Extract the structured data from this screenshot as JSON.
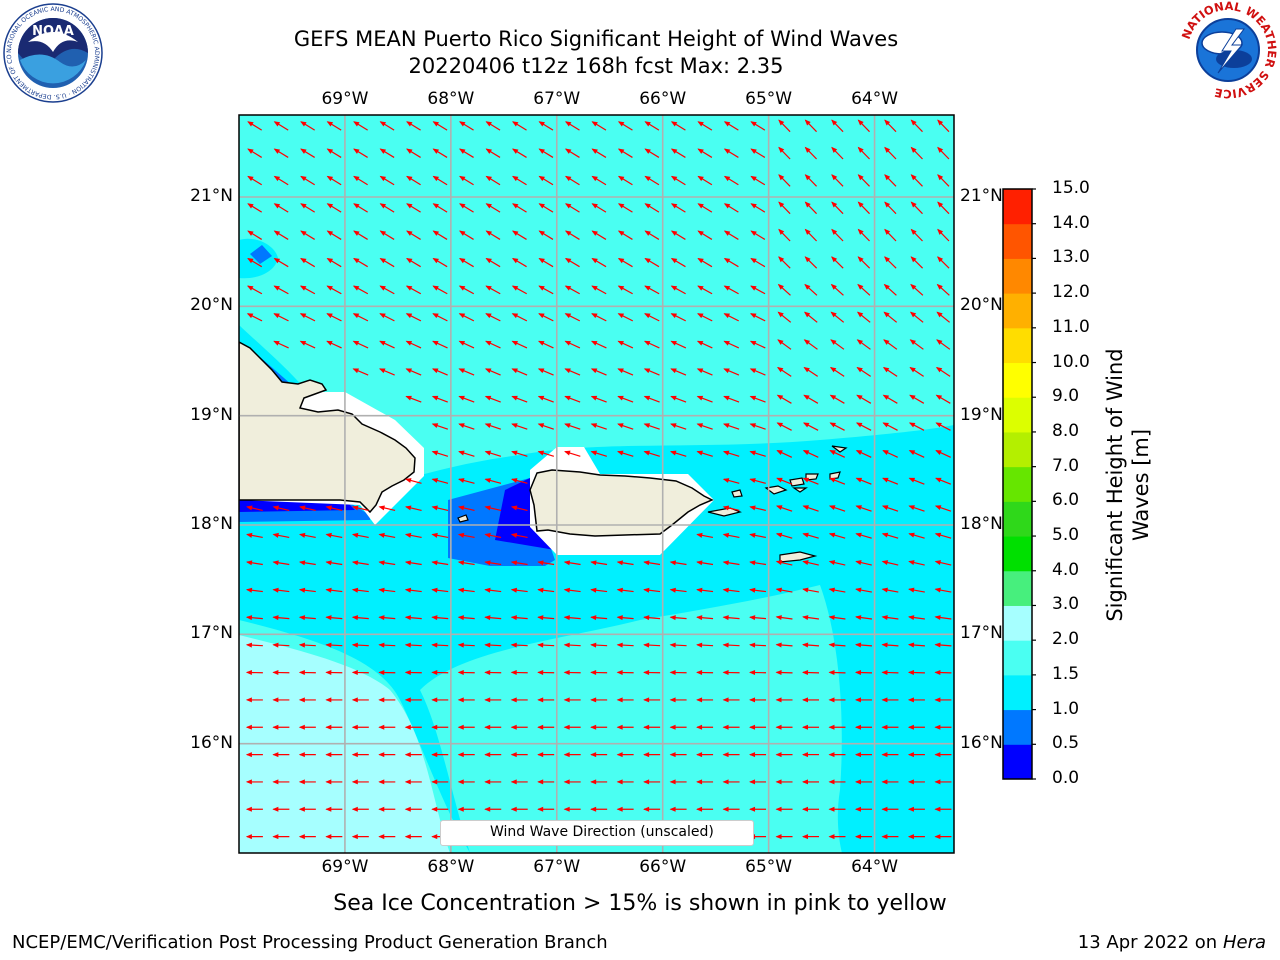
{
  "title": {
    "line1": "GEFS MEAN Puerto Rico Significant Height of Wind Waves",
    "line2": "20220406 t12z 168h fcst   Max: 2.35"
  },
  "logos": {
    "noaa_text": "NOAA",
    "noaa_ring": "NATIONAL OCEANIC AND ATMOSPHERIC ADMINISTRATION · U.S. DEPARTMENT OF COMMERCE ·",
    "nws_ring": "NATIONAL WEATHER SERVICE"
  },
  "map": {
    "lon_min": -70.0,
    "lon_max": -63.25,
    "lat_min": 15.0,
    "lat_max": 21.75,
    "lon_ticks": [
      "69°W",
      "68°W",
      "67°W",
      "66°W",
      "65°W",
      "64°W"
    ],
    "lat_ticks": [
      "21°N",
      "20°N",
      "19°N",
      "18°N",
      "17°N",
      "16°N"
    ],
    "arrow_color": "#ff0000",
    "grid_color": "#b0b0b0"
  },
  "legend": {
    "label": "Wind Wave Direction (unscaled)"
  },
  "colorbar": {
    "title_line1": "Significant Height of Wind",
    "title_line2": "Waves [m]",
    "labels": [
      "0.0",
      "0.5",
      "1.0",
      "1.5",
      "2.0",
      "3.0",
      "4.0",
      "5.0",
      "6.0",
      "7.0",
      "8.0",
      "9.0",
      "10.0",
      "11.0",
      "12.0",
      "13.0",
      "14.0",
      "15.0"
    ],
    "colors": [
      "#0000ff",
      "#0078ff",
      "#00f0ff",
      "#4afff2",
      "#a6ffff",
      "#47ef7d",
      "#00e000",
      "#2fd81a",
      "#66e600",
      "#b4ef00",
      "#dcff00",
      "#ffff00",
      "#ffdd00",
      "#ffb000",
      "#ff8800",
      "#ff5500",
      "#ff2000"
    ]
  },
  "footnote": "Sea Ice Concentration > 15% is shown in pink to yellow",
  "footer": {
    "left": "NCEP/EMC/Verification Post Processing Product Generation Branch",
    "right_prefix": "13 Apr 2022 on ",
    "right_host": "Hera"
  }
}
